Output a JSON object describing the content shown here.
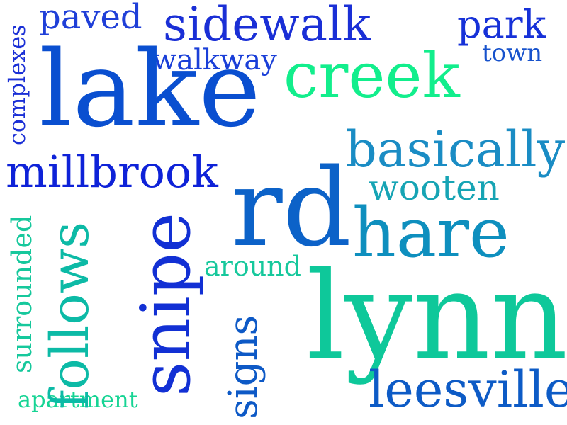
{
  "words": {
    "paved": {
      "text": "paved",
      "color": "#1f3fd8"
    },
    "sidewalk": {
      "text": "sidewalk",
      "color": "#1a2fd6"
    },
    "park": {
      "text": "park",
      "color": "#1631d8"
    },
    "walkway": {
      "text": "walkway",
      "color": "#1a3fd8"
    },
    "town": {
      "text": "town",
      "color": "#1752cc"
    },
    "creek": {
      "text": "creek",
      "color": "#12ee8c"
    },
    "lake": {
      "text": "lake",
      "color": "#0a4fd0"
    },
    "complexes": {
      "text": "complexes",
      "color": "#1a2fd6"
    },
    "millbrook": {
      "text": "millbrook",
      "color": "#0e22d8"
    },
    "basically": {
      "text": "basically",
      "color": "#1a8cc4"
    },
    "wooten": {
      "text": "wooten",
      "color": "#16a4b4"
    },
    "rd": {
      "text": "rd",
      "color": "#0c62c8"
    },
    "hare": {
      "text": "hare",
      "color": "#0e8fbe"
    },
    "around": {
      "text": "around",
      "color": "#16c89c"
    },
    "lynn": {
      "text": "lynn",
      "color": "#0ec89a"
    },
    "leesville": {
      "text": "leesville",
      "color": "#0d5bc6"
    },
    "apartment": {
      "text": "apartment",
      "color": "#16d494"
    },
    "surrounded": {
      "text": "surrounded",
      "color": "#16c89c"
    },
    "follows": {
      "text": "follows",
      "color": "#0cbaa6"
    },
    "snipe": {
      "text": "snipe",
      "color": "#1230d4"
    },
    "signs": {
      "text": "signs",
      "color": "#0d59c6"
    }
  }
}
